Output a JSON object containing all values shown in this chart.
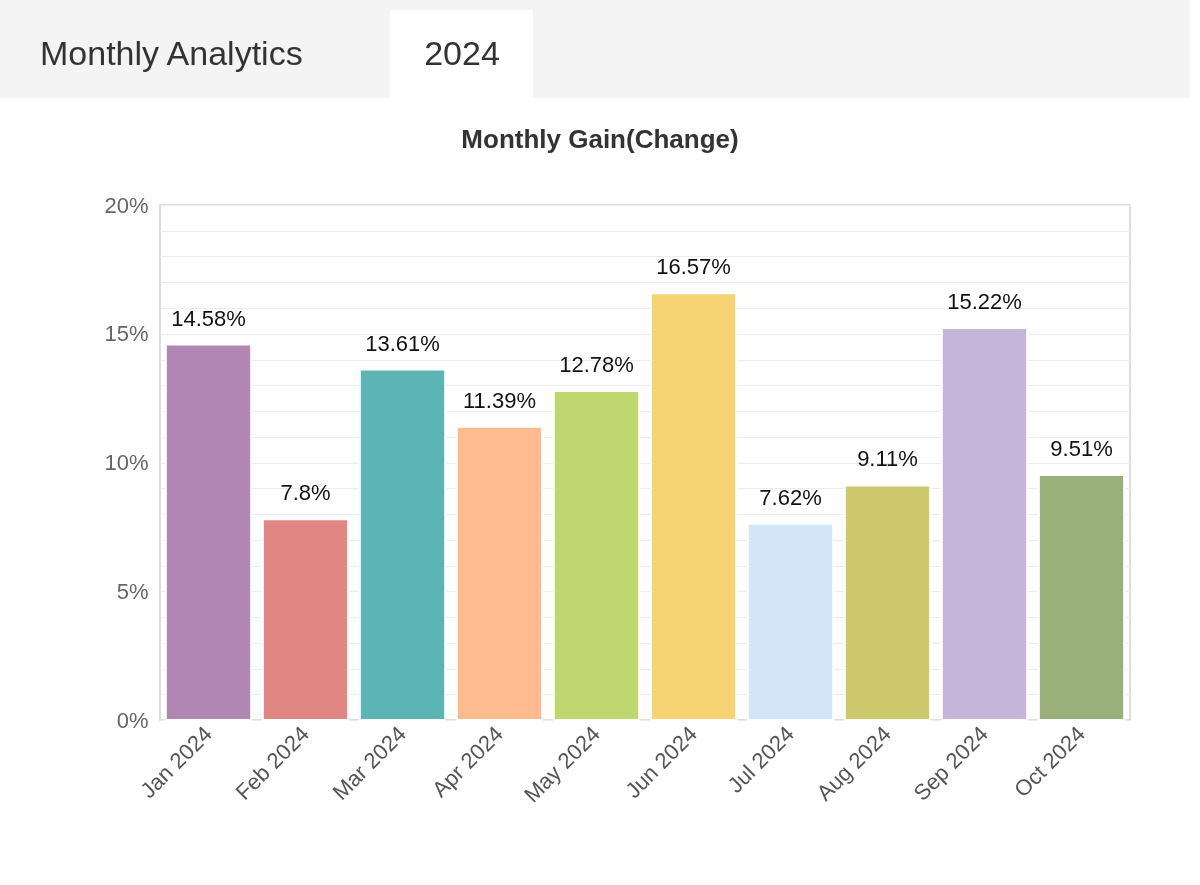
{
  "chart_data": {
    "type": "bar",
    "title": "Monthly Gain(Change)",
    "annotations": [
      "Monthly Analytics",
      "2024"
    ],
    "categories": [
      "Jan 2024",
      "Feb 2024",
      "Mar 2024",
      "Apr 2024",
      "May 2024",
      "Jun 2024",
      "Jul 2024",
      "Aug 2024",
      "Sep 2024",
      "Oct 2024"
    ],
    "values": [
      14.58,
      7.8,
      13.61,
      11.39,
      12.78,
      16.57,
      7.62,
      9.11,
      15.22,
      9.51
    ],
    "value_labels": [
      "14.58%",
      "7.8%",
      "13.61%",
      "11.39%",
      "12.78%",
      "16.57%",
      "7.62%",
      "9.11%",
      "15.22%",
      "9.51%"
    ],
    "colors": [
      "#b086b3",
      "#e08784",
      "#5cb5b4",
      "#fdbb8f",
      "#bcd86f",
      "#f6d373",
      "#d2e6f8",
      "#cdc96c",
      "#c5b5d9",
      "#9ab07a"
    ],
    "ylim": [
      0,
      20
    ],
    "yticks": [
      {
        "value": 0,
        "label": "0%"
      },
      {
        "value": 1,
        "label": null
      },
      {
        "value": 2,
        "label": null
      },
      {
        "value": 3,
        "label": null
      },
      {
        "value": 4,
        "label": null
      },
      {
        "value": 5,
        "label": "5%"
      },
      {
        "value": 6,
        "label": null
      },
      {
        "value": 7,
        "label": null
      },
      {
        "value": 8,
        "label": null
      },
      {
        "value": 9,
        "label": null
      },
      {
        "value": 10,
        "label": "10%"
      },
      {
        "value": 11,
        "label": null
      },
      {
        "value": 12,
        "label": null
      },
      {
        "value": 13,
        "label": null
      },
      {
        "value": 14,
        "label": null
      },
      {
        "value": 15,
        "label": "15%"
      },
      {
        "value": 16,
        "label": null
      },
      {
        "value": 17,
        "label": null
      },
      {
        "value": 18,
        "label": null
      },
      {
        "value": 19,
        "label": null
      },
      {
        "value": 20,
        "label": "20%"
      }
    ],
    "grid": true
  }
}
